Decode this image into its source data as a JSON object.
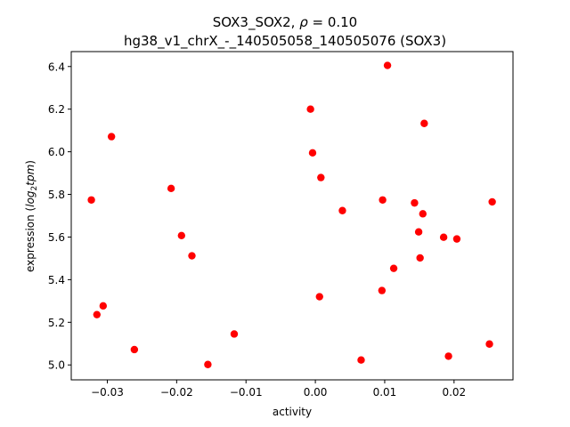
{
  "chart_data": {
    "type": "scatter",
    "title_parts": {
      "prefix": "SOX3_SOX2, ",
      "rho_symbol": "ρ",
      "rho_value": " = 0.10"
    },
    "subtitle": "hg38_v1_chrX_-_140505058_140505076 (SOX3)",
    "xlabel": "activity",
    "ylabel_parts": {
      "prefix": "expression (",
      "italic_base": "log",
      "subscript": "2",
      "italic_rest": "tpm",
      "suffix": ")"
    },
    "xlim": [
      -0.0352,
      0.0285
    ],
    "ylim": [
      4.93,
      6.47
    ],
    "xticks": [
      {
        "value": -0.03,
        "label": "−0.03"
      },
      {
        "value": -0.02,
        "label": "−0.02"
      },
      {
        "value": -0.01,
        "label": "−0.01"
      },
      {
        "value": 0.0,
        "label": "0.00"
      },
      {
        "value": 0.01,
        "label": "0.01"
      },
      {
        "value": 0.02,
        "label": "0.02"
      }
    ],
    "yticks": [
      {
        "value": 5.0,
        "label": "5.0"
      },
      {
        "value": 5.2,
        "label": "5.2"
      },
      {
        "value": 5.4,
        "label": "5.4"
      },
      {
        "value": 5.6,
        "label": "5.6"
      },
      {
        "value": 5.8,
        "label": "5.8"
      },
      {
        "value": 6.0,
        "label": "6.0"
      },
      {
        "value": 6.2,
        "label": "6.2"
      },
      {
        "value": 6.4,
        "label": "6.4"
      }
    ],
    "grid": false,
    "marker_color": "#ff0000",
    "points": [
      {
        "x": 0.0104,
        "y": 6.405
      },
      {
        "x": -0.0007,
        "y": 6.2
      },
      {
        "x": 0.0157,
        "y": 6.133
      },
      {
        "x": -0.0294,
        "y": 6.071
      },
      {
        "x": -0.0004,
        "y": 5.995
      },
      {
        "x": 0.0008,
        "y": 5.879
      },
      {
        "x": -0.0208,
        "y": 5.828
      },
      {
        "x": -0.0323,
        "y": 5.774
      },
      {
        "x": 0.0097,
        "y": 5.774
      },
      {
        "x": 0.0143,
        "y": 5.76
      },
      {
        "x": 0.0255,
        "y": 5.765
      },
      {
        "x": 0.0039,
        "y": 5.724
      },
      {
        "x": 0.0155,
        "y": 5.709
      },
      {
        "x": 0.0149,
        "y": 5.624
      },
      {
        "x": -0.0193,
        "y": 5.607
      },
      {
        "x": 0.0185,
        "y": 5.599
      },
      {
        "x": 0.0204,
        "y": 5.591
      },
      {
        "x": -0.0178,
        "y": 5.512
      },
      {
        "x": 0.0151,
        "y": 5.502
      },
      {
        "x": 0.0113,
        "y": 5.453
      },
      {
        "x": 0.0096,
        "y": 5.349
      },
      {
        "x": 0.0006,
        "y": 5.32
      },
      {
        "x": -0.0306,
        "y": 5.277
      },
      {
        "x": -0.0315,
        "y": 5.236
      },
      {
        "x": -0.0117,
        "y": 5.145
      },
      {
        "x": 0.0251,
        "y": 5.098
      },
      {
        "x": -0.0261,
        "y": 5.072
      },
      {
        "x": 0.0192,
        "y": 5.041
      },
      {
        "x": 0.0066,
        "y": 5.023
      },
      {
        "x": -0.0155,
        "y": 5.002
      }
    ]
  }
}
